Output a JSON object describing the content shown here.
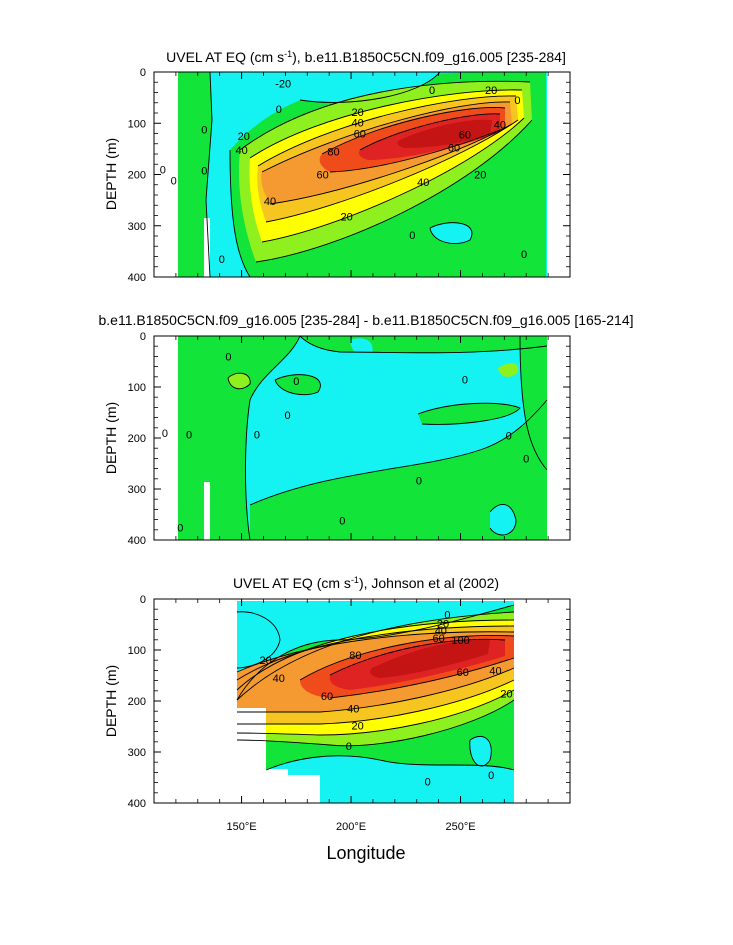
{
  "figure": {
    "xlabel": "Longitude",
    "xticks": [
      150,
      200,
      250
    ],
    "xtick_labels": [
      "150°E",
      "200°E",
      "250°E"
    ],
    "xlim": [
      110,
      300
    ],
    "ylim": [
      0,
      400
    ],
    "yticks": [
      0,
      100,
      200,
      300,
      400
    ],
    "ylabel": "DEPTH (m)",
    "colors": {
      "cyan": "#15f2f2",
      "green": "#12e43a",
      "lightgreen": "#8ef01f",
      "yellow": "#ffff00",
      "gold": "#f7c51f",
      "orange": "#f49a30",
      "redorange": "#ef4b1b",
      "red": "#df2323",
      "darkred": "#c41414"
    }
  },
  "chart_data": [
    {
      "type": "contour",
      "id": "panel-1",
      "title_prefix": "UVEL AT EQ (cm s",
      "title_sup": "-1",
      "title_suffix": "), b.e11.B1850C5CN.f09_g16.005 [235-284]",
      "variable": "UVEL",
      "units": "cm s-1",
      "xlabel": "Longitude",
      "ylabel": "DEPTH (m)",
      "ylim": [
        0,
        400
      ],
      "core": {
        "lon": 238,
        "depth": 125,
        "max_approx": 100
      },
      "contour_labels": [
        {
          "text": "-20",
          "lon": 169,
          "depth": 22
        },
        {
          "text": "0",
          "lon": 167,
          "depth": 72
        },
        {
          "text": "0",
          "lon": 237,
          "depth": 35
        },
        {
          "text": "20",
          "lon": 264,
          "depth": 35
        },
        {
          "text": "20",
          "lon": 203,
          "depth": 78
        },
        {
          "text": "40",
          "lon": 203,
          "depth": 99
        },
        {
          "text": "60",
          "lon": 204,
          "depth": 120
        },
        {
          "text": "20",
          "lon": 151,
          "depth": 125
        },
        {
          "text": "40",
          "lon": 150,
          "depth": 152
        },
        {
          "text": "80",
          "lon": 192,
          "depth": 155
        },
        {
          "text": "60",
          "lon": 252,
          "depth": 122
        },
        {
          "text": "60",
          "lon": 247,
          "depth": 147
        },
        {
          "text": "40",
          "lon": 268,
          "depth": 102
        },
        {
          "text": "60",
          "lon": 187,
          "depth": 200
        },
        {
          "text": "40",
          "lon": 233,
          "depth": 215
        },
        {
          "text": "20",
          "lon": 259,
          "depth": 200
        },
        {
          "text": "40",
          "lon": 163,
          "depth": 252
        },
        {
          "text": "20",
          "lon": 198,
          "depth": 282
        },
        {
          "text": "0",
          "lon": 228,
          "depth": 318
        },
        {
          "text": "0",
          "lon": 276,
          "depth": 55
        },
        {
          "text": "0",
          "lon": 114,
          "depth": 190
        },
        {
          "text": "0",
          "lon": 119,
          "depth": 212
        },
        {
          "text": "0",
          "lon": 133,
          "depth": 112
        },
        {
          "text": "0",
          "lon": 133,
          "depth": 192
        },
        {
          "text": "0",
          "lon": 141,
          "depth": 365
        },
        {
          "text": "0",
          "lon": 279,
          "depth": 355
        }
      ]
    },
    {
      "type": "contour",
      "id": "panel-2",
      "title": "b.e11.B1850C5CN.f09_g16.005 [235-284] - b.e11.B1850C5CN.f09_g16.005 [165-214]",
      "variable": "UVEL difference",
      "xlabel": "Longitude",
      "ylabel": "DEPTH (m)",
      "ylim": [
        0,
        400
      ],
      "contour_labels": [
        {
          "text": "0",
          "lon": 144,
          "depth": 40
        },
        {
          "text": "0",
          "lon": 175,
          "depth": 88
        },
        {
          "text": "0",
          "lon": 171,
          "depth": 155
        },
        {
          "text": "0",
          "lon": 157,
          "depth": 193
        },
        {
          "text": "0",
          "lon": 252,
          "depth": 85
        },
        {
          "text": "0",
          "lon": 272,
          "depth": 195
        },
        {
          "text": "0",
          "lon": 280,
          "depth": 240
        },
        {
          "text": "0",
          "lon": 231,
          "depth": 283
        },
        {
          "text": "0",
          "lon": 196,
          "depth": 362
        },
        {
          "text": "0",
          "lon": 115,
          "depth": 190
        },
        {
          "text": "0",
          "lon": 122,
          "depth": 375
        },
        {
          "text": "0",
          "lon": 126,
          "depth": 193
        }
      ]
    },
    {
      "type": "contour",
      "id": "panel-3",
      "title_prefix": "UVEL AT EQ (cm s",
      "title_sup": "-1",
      "title_suffix": "), Johnson et al (2002)",
      "variable": "UVEL",
      "units": "cm s-1",
      "xlabel": "Longitude",
      "ylabel": "DEPTH (m)",
      "ylim": [
        0,
        400
      ],
      "core": {
        "lon": 238,
        "depth": 90,
        "max_approx": 100
      },
      "contour_labels": [
        {
          "text": "0",
          "lon": 244,
          "depth": 30
        },
        {
          "text": "20",
          "lon": 242,
          "depth": 48
        },
        {
          "text": "40",
          "lon": 241,
          "depth": 62
        },
        {
          "text": "60",
          "lon": 240,
          "depth": 76
        },
        {
          "text": "100",
          "lon": 250,
          "depth": 80
        },
        {
          "text": "80",
          "lon": 202,
          "depth": 110
        },
        {
          "text": "60",
          "lon": 189,
          "depth": 190
        },
        {
          "text": "60",
          "lon": 251,
          "depth": 143
        },
        {
          "text": "40",
          "lon": 167,
          "depth": 155
        },
        {
          "text": "40",
          "lon": 266,
          "depth": 140
        },
        {
          "text": "20",
          "lon": 161,
          "depth": 120
        },
        {
          "text": "40",
          "lon": 201,
          "depth": 215
        },
        {
          "text": "20",
          "lon": 271,
          "depth": 185
        },
        {
          "text": "20",
          "lon": 203,
          "depth": 248
        },
        {
          "text": "0",
          "lon": 199,
          "depth": 288
        },
        {
          "text": "0",
          "lon": 235,
          "depth": 358
        },
        {
          "text": "0",
          "lon": 264,
          "depth": 345
        }
      ]
    }
  ]
}
